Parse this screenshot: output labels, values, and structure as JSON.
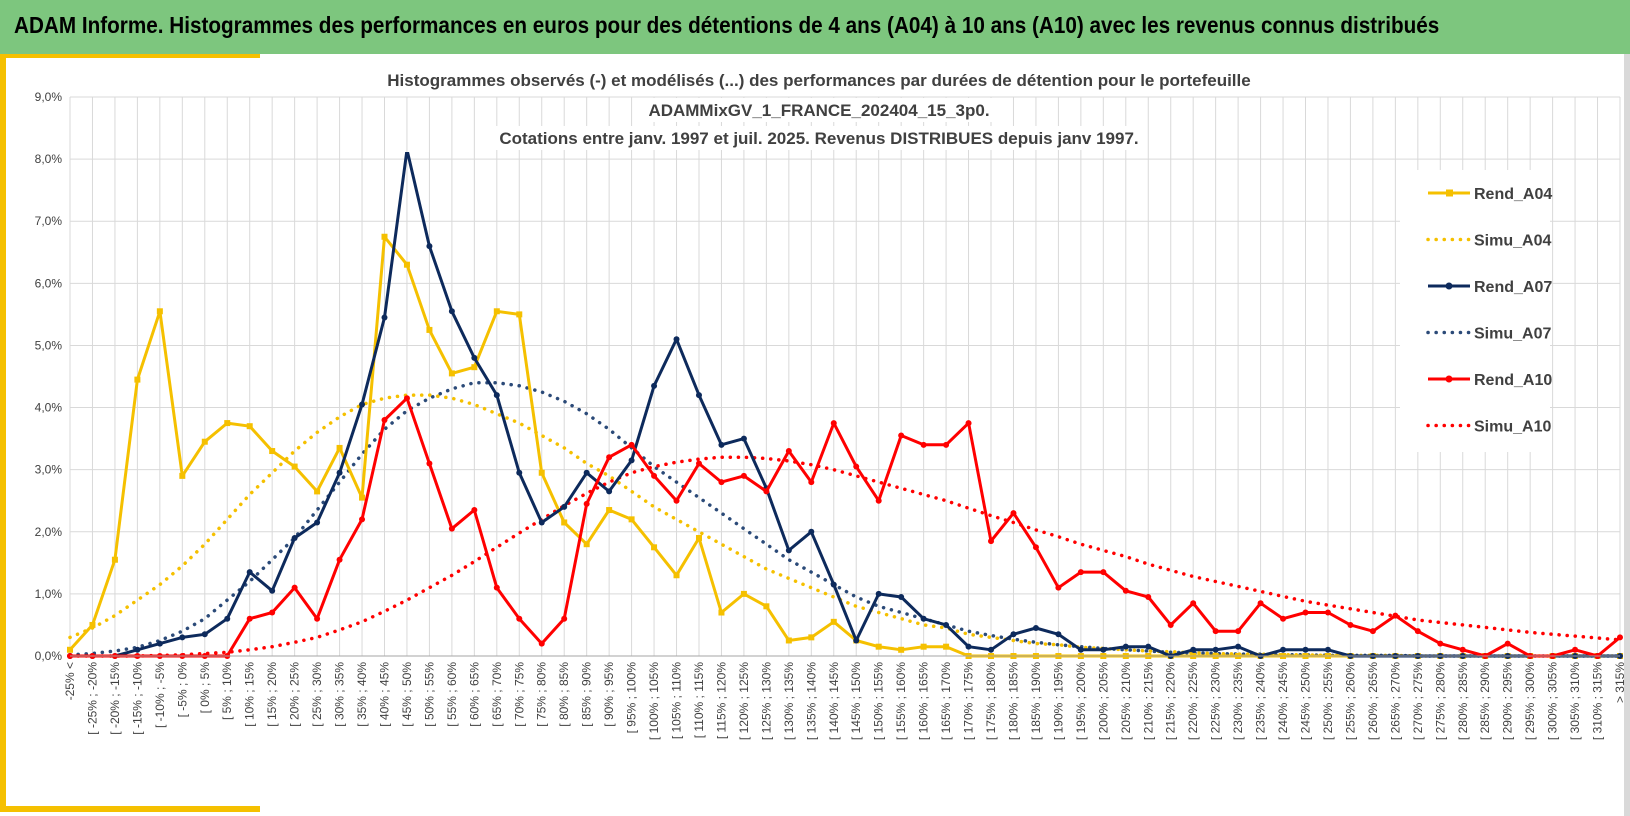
{
  "banner": {
    "title": "ADAM Informe. Histogrammes des performances en euros pour des détentions de 4 ans (A04) à 10 ans (A10) avec les revenus connus distribués"
  },
  "colors": {
    "banner": "#7dc67e",
    "A04": "#f5c000",
    "A07": "#0d2a5c",
    "A10": "#ff0000",
    "grid": "#d9d9d9"
  },
  "chart_data": {
    "type": "line",
    "title_lines": [
      "Histogrammes observés (-) et modélisés (...) des performances par durées de détention pour  le portefeuille",
      "ADAMMixGV_1_FRANCE_202404_15_3p0.",
      "Cotations  entre janv. 1997 et juil. 2025. Revenus DISTRIBUES depuis janv 1997."
    ],
    "ylim": [
      0,
      9
    ],
    "y_ticks": [
      "0,0%",
      "1,0%",
      "2,0%",
      "3,0%",
      "4,0%",
      "5,0%",
      "6,0%",
      "7,0%",
      "8,0%",
      "9,0%"
    ],
    "grid": true,
    "legend_position": "right",
    "categories": [
      "-25% <",
      "[ -25% ; -20%",
      "[ -20% ; -15%",
      "[ -15% ; -10%",
      "[ -10% ; -5%",
      "[ -5% ; 0%",
      "[ 0% ; 5%",
      "[ 5% ; 10%",
      "[ 10% ; 15%",
      "[ 15% ; 20%",
      "[ 20% ; 25%",
      "[ 25% ; 30%",
      "[ 30% ; 35%",
      "[ 35% ; 40%",
      "[ 40% ; 45%",
      "[ 45% ; 50%",
      "[ 50% ; 55%",
      "[ 55% ; 60%",
      "[ 60% ; 65%",
      "[ 65% ; 70%",
      "[ 70% ; 75%",
      "[ 75% ; 80%",
      "[ 80% ; 85%",
      "[ 85% ; 90%",
      "[ 90% ; 95%",
      "[ 95% ; 100%",
      "[ 100% ; 105%",
      "[ 105% ; 110%",
      "[ 110% ; 115%",
      "[ 115% ; 120%",
      "[ 120% ; 125%",
      "[ 125% ; 130%",
      "[ 130% ; 135%",
      "[ 135% ; 140%",
      "[ 140% ; 145%",
      "[ 145% ; 150%",
      "[ 150% ; 155%",
      "[ 155% ; 160%",
      "[ 160% ; 165%",
      "[ 165% ; 170%",
      "[ 170% ; 175%",
      "[ 175% ; 180%",
      "[ 180% ; 185%",
      "[ 185% ; 190%",
      "[ 190% ; 195%",
      "[ 195% ; 200%",
      "[ 200% ; 205%",
      "[ 205% ; 210%",
      "[ 210% ; 215%",
      "[ 215% ; 220%",
      "[ 220% ; 225%",
      "[ 225% ; 230%",
      "[ 230% ; 235%",
      "[ 235% ; 240%",
      "[ 240% ; 245%",
      "[ 245% ; 250%",
      "[ 250% ; 255%",
      "[ 255% ; 260%",
      "[ 260% ; 265%",
      "[ 265% ; 270%",
      "[ 270% ; 275%",
      "[ 275% ; 280%",
      "[ 280% ; 285%",
      "[ 285% ; 290%",
      "[ 290% ; 295%",
      "[ 295% ; 300%",
      "[ 300% ; 305%",
      "[ 305% ; 310%",
      "[ 310% ; 315%",
      "> 315%"
    ],
    "series": [
      {
        "name": "Rend_A04",
        "style": "solid",
        "marker": "square",
        "color": "#f5c000",
        "values": [
          0.1,
          0.5,
          1.55,
          4.45,
          5.55,
          2.9,
          3.45,
          3.75,
          3.7,
          3.3,
          3.05,
          2.65,
          3.35,
          2.55,
          6.75,
          6.3,
          5.25,
          4.55,
          4.65,
          5.55,
          5.5,
          2.95,
          2.15,
          1.8,
          2.35,
          2.2,
          1.75,
          1.3,
          1.9,
          0.7,
          1.0,
          0.8,
          0.25,
          0.3,
          0.55,
          0.25,
          0.15,
          0.1,
          0.15,
          0.15,
          0.0,
          0.0,
          0.0,
          0.0,
          0.0,
          0.0,
          0.0,
          0.0,
          0.0,
          0.0,
          0.0,
          0.0,
          0.0,
          0.0,
          0.0,
          0.0,
          0.0,
          0.0,
          0.0,
          0.0,
          0.0,
          0.0,
          0.0,
          0.0,
          0.0,
          0.0,
          0.0,
          0.0,
          0.0,
          0.0
        ]
      },
      {
        "name": "Simu_A04",
        "style": "dotted",
        "color": "#f5c000",
        "values": [
          0.3,
          0.45,
          0.65,
          0.9,
          1.15,
          1.45,
          1.8,
          2.2,
          2.6,
          2.95,
          3.3,
          3.6,
          3.85,
          4.05,
          4.15,
          4.2,
          4.2,
          4.15,
          4.05,
          3.9,
          3.75,
          3.55,
          3.35,
          3.1,
          2.9,
          2.65,
          2.4,
          2.2,
          2.0,
          1.8,
          1.6,
          1.4,
          1.25,
          1.1,
          0.95,
          0.8,
          0.7,
          0.6,
          0.5,
          0.45,
          0.35,
          0.3,
          0.25,
          0.2,
          0.18,
          0.14,
          0.12,
          0.1,
          0.08,
          0.07,
          0.05,
          0.04,
          0.03,
          0.03,
          0.02,
          0.02,
          0.01,
          0.01,
          0.01,
          0.01,
          0.0,
          0.0,
          0.0,
          0.0,
          0.0,
          0.0,
          0.0,
          0.0,
          0.0,
          0.0
        ]
      },
      {
        "name": "Rend_A07",
        "style": "solid",
        "marker": "circle",
        "color": "#0d2a5c",
        "values": [
          0.0,
          0.0,
          0.0,
          0.1,
          0.2,
          0.3,
          0.35,
          0.6,
          1.35,
          1.05,
          1.9,
          2.15,
          2.95,
          4.05,
          5.45,
          8.15,
          6.6,
          5.55,
          4.8,
          4.2,
          2.95,
          2.15,
          2.4,
          2.95,
          2.65,
          3.15,
          4.35,
          5.1,
          4.2,
          3.4,
          3.5,
          2.7,
          1.7,
          2.0,
          1.15,
          0.25,
          1.0,
          0.95,
          0.6,
          0.5,
          0.15,
          0.1,
          0.35,
          0.45,
          0.35,
          0.1,
          0.1,
          0.15,
          0.15,
          0.0,
          0.1,
          0.1,
          0.15,
          0.0,
          0.1,
          0.1,
          0.1,
          0.0,
          0.0,
          0.0,
          0.0,
          0.0,
          0.0,
          0.0,
          0.0,
          0.0,
          0.0,
          0.0,
          0.0,
          0.0
        ]
      },
      {
        "name": "Simu_A07",
        "style": "dotted",
        "color": "#2b4a78",
        "values": [
          0.02,
          0.04,
          0.08,
          0.14,
          0.25,
          0.4,
          0.6,
          0.9,
          1.2,
          1.55,
          1.9,
          2.35,
          2.8,
          3.25,
          3.65,
          3.95,
          4.15,
          4.3,
          4.4,
          4.4,
          4.35,
          4.25,
          4.1,
          3.9,
          3.65,
          3.35,
          3.05,
          2.8,
          2.55,
          2.3,
          2.05,
          1.8,
          1.55,
          1.35,
          1.15,
          0.95,
          0.8,
          0.7,
          0.6,
          0.5,
          0.4,
          0.33,
          0.27,
          0.22,
          0.18,
          0.15,
          0.12,
          0.1,
          0.08,
          0.06,
          0.05,
          0.04,
          0.03,
          0.03,
          0.02,
          0.02,
          0.01,
          0.01,
          0.01,
          0.01,
          0.0,
          0.0,
          0.0,
          0.0,
          0.0,
          0.0,
          0.0,
          0.0,
          0.0,
          0.0
        ]
      },
      {
        "name": "Rend_A10",
        "style": "solid",
        "marker": "circle",
        "color": "#ff0000",
        "values": [
          0.0,
          0.0,
          0.0,
          0.0,
          0.0,
          0.0,
          0.0,
          0.0,
          0.6,
          0.7,
          1.1,
          0.6,
          1.55,
          2.2,
          3.8,
          4.15,
          3.1,
          2.05,
          2.35,
          1.1,
          0.6,
          0.2,
          0.6,
          2.45,
          3.2,
          3.4,
          2.9,
          2.5,
          3.1,
          2.8,
          2.9,
          2.65,
          3.3,
          2.8,
          3.75,
          3.05,
          2.5,
          3.55,
          3.4,
          3.4,
          3.75,
          1.85,
          2.3,
          1.75,
          1.1,
          1.35,
          1.35,
          1.05,
          0.95,
          0.5,
          0.85,
          0.4,
          0.4,
          0.85,
          0.6,
          0.7,
          0.7,
          0.5,
          0.4,
          0.65,
          0.4,
          0.2,
          0.1,
          0.0,
          0.2,
          0.0,
          0.0,
          0.1,
          0.0,
          0.3
        ]
      },
      {
        "name": "Simu_A10",
        "style": "dotted",
        "color": "#ff0000",
        "values": [
          0.0,
          0.0,
          0.0,
          0.0,
          0.01,
          0.02,
          0.04,
          0.06,
          0.1,
          0.15,
          0.22,
          0.3,
          0.42,
          0.55,
          0.72,
          0.9,
          1.1,
          1.3,
          1.52,
          1.75,
          1.98,
          2.2,
          2.42,
          2.62,
          2.8,
          2.95,
          3.05,
          3.12,
          3.17,
          3.2,
          3.2,
          3.18,
          3.14,
          3.08,
          3.0,
          2.9,
          2.8,
          2.7,
          2.6,
          2.5,
          2.38,
          2.26,
          2.15,
          2.03,
          1.92,
          1.8,
          1.7,
          1.6,
          1.48,
          1.38,
          1.28,
          1.2,
          1.12,
          1.04,
          0.96,
          0.88,
          0.82,
          0.76,
          0.7,
          0.64,
          0.58,
          0.54,
          0.5,
          0.46,
          0.42,
          0.38,
          0.35,
          0.32,
          0.29,
          0.26
        ]
      }
    ]
  }
}
